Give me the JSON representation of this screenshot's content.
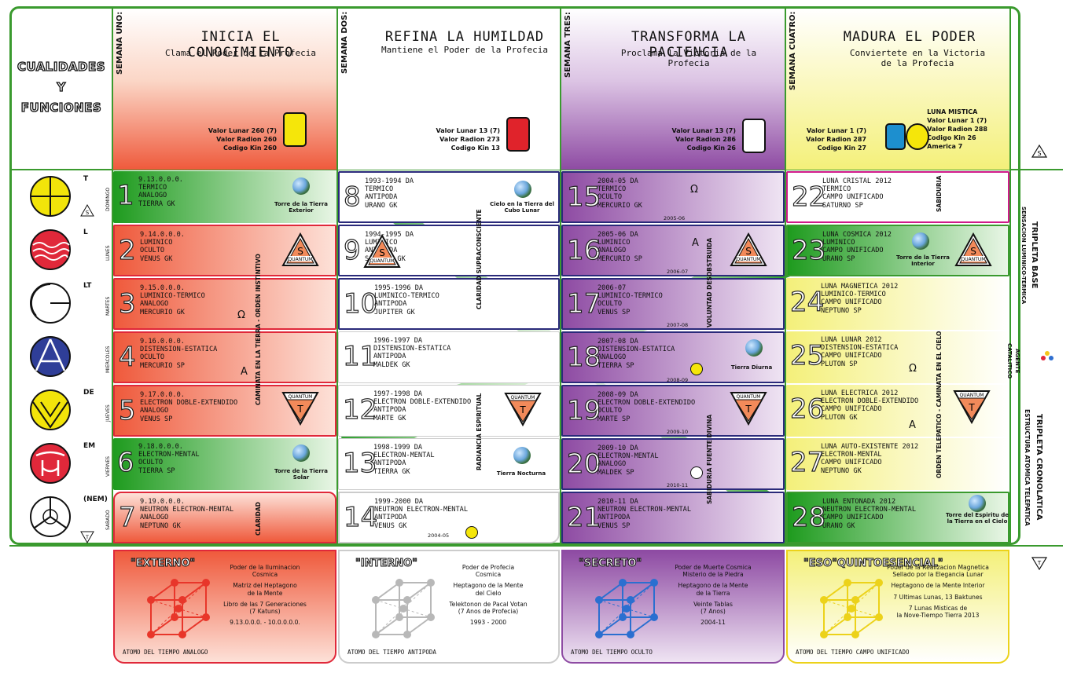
{
  "qualities_title": [
    "CUALIDADES",
    "Y",
    "FUNCIONES"
  ],
  "weeks": [
    {
      "week": "SEMANA UNO:",
      "title": "INICIA EL CONOCIMIENTO",
      "subtitle": "Clama el Poder de la Profecia",
      "values": [
        "Valor Lunar 260 (7)",
        "Valor Radion 260",
        "Codigo Kin 260"
      ],
      "color": "#ef5a3c"
    },
    {
      "week": "SEMANA DOS:",
      "title": "REFINA LA HUMILDAD",
      "subtitle": "Mantiene el Poder de la Profecia",
      "values": [
        "Valor Lunar 13 (7)",
        "Valor Radion 273",
        "Codigo Kin 13"
      ],
      "color": "#ffffff"
    },
    {
      "week": "SEMANA TRES:",
      "title": "TRANSFORMA LA PACIENCIA",
      "subtitle": "Proclama la Victoria de la Profecia",
      "values": [
        "Valor Lunar 13 (7)",
        "Valor Radion 286",
        "Codigo Kin 26"
      ],
      "color": "#8e4ba3"
    },
    {
      "week": "SEMANA CUATRO:",
      "title": "MADURA EL PODER",
      "subtitle": "Conviertete en la Victoria\nde la Profecia",
      "values": [
        "Valor Lunar 1 (7)",
        "Valor Radion 287",
        "Codigo Kin 27"
      ],
      "values_b_title": "LUNA MISTICA",
      "values_b": [
        "Valor Lunar 1 (7)",
        "Valor Radion 288",
        "Codigo Kin 26",
        "America 7"
      ],
      "color": "#f4f07a"
    }
  ],
  "rows": [
    {
      "code": "T",
      "day": "DOMINGO",
      "color": "#f2e40a"
    },
    {
      "code": "L",
      "day": "LUNES",
      "color": "#e0283a"
    },
    {
      "code": "LT",
      "day": "MARTES",
      "color": "#ffffff"
    },
    {
      "code": "",
      "day": "MIERCOLES",
      "color": "#2f3e98"
    },
    {
      "code": "DE",
      "day": "JUEVES",
      "color": "#f2e40a"
    },
    {
      "code": "EM",
      "day": "VIERNES",
      "color": "#e0283a"
    },
    {
      "code": "(NEM)",
      "day": "SABADO",
      "color": "#ffffff"
    }
  ],
  "cells": [
    {
      "n": "1",
      "lines": [
        "9.13.0.0.0.",
        "TERMICO",
        "ANALOGO",
        "TIERRA GK"
      ],
      "extra": "Torre de la Tierra Exterior"
    },
    {
      "n": "2",
      "lines": [
        "9.14.0.0.0.",
        "LUMINICO",
        "OCULTO",
        "VENUS GK"
      ],
      "extra": "QUANTUM"
    },
    {
      "n": "3",
      "lines": [
        "9.15.0.0.0.",
        "LUMINICO-TERMICO",
        "ANALOGO",
        "MERCURIO GK"
      ],
      "extra": "Ω"
    },
    {
      "n": "4",
      "lines": [
        "9.16.0.0.0.",
        "DISTENSION-ESTATICA",
        "OCULTO",
        "MERCURIO SP"
      ],
      "extra": "A"
    },
    {
      "n": "5",
      "lines": [
        "9.17.0.0.0.",
        "ELECTRON DOBLE-EXTENDIDO",
        "ANALOGO",
        "VENUS SP"
      ],
      "extra": "QUANTUM"
    },
    {
      "n": "6",
      "lines": [
        "9.18.0.0.0.",
        "ELECTRON-MENTAL",
        "OCULTO",
        "TIERRA SP"
      ],
      "extra": "Torre de la Tierra Solar"
    },
    {
      "n": "7",
      "lines": [
        "9.19.0.0.0.",
        "NEUTRON ELECTRON-MENTAL",
        "ANALOGO",
        "NEPTUNO GK"
      ],
      "extra": "CLARIDAD"
    },
    {
      "n": "8",
      "lines": [
        "1993-1994 DA",
        "TERMICO",
        "ANTIPODA",
        "URANO GK"
      ],
      "extra": "Cielo en la Tierra del Cubo Lunar"
    },
    {
      "n": "9",
      "lines": [
        "1994-1995 DA",
        "LUMINICO",
        "ANTIPODA",
        "SATURNO GK"
      ],
      "extra": "QUANTUM"
    },
    {
      "n": "10",
      "lines": [
        "1995-1996 DA",
        "LUMINICO-TERMICO",
        "ANTIPODA",
        "JUPITER GK"
      ],
      "extra": ""
    },
    {
      "n": "11",
      "lines": [
        "1996-1997 DA",
        "DISTENSION-ESTATICA",
        "ANTIPODA",
        "MALDEK GK"
      ],
      "extra": ""
    },
    {
      "n": "12",
      "lines": [
        "1997-1998 DA",
        "ELECTRON DOBLE-EXTENDIDO",
        "ANTIPODA",
        "MARTE GK"
      ],
      "extra": "QUANTUM"
    },
    {
      "n": "13",
      "lines": [
        "1998-1999 DA",
        "ELECTRON-MENTAL",
        "ANTIPODA",
        "TIERRA GK"
      ],
      "extra": "Tierra Nocturna"
    },
    {
      "n": "14",
      "lines": [
        "1999-2000 DA",
        "NEUTRON ELECTRON-MENTAL",
        "ANTIPODA",
        "VENUS GK"
      ],
      "extra": "2004-05"
    },
    {
      "n": "15",
      "lines": [
        "2004-05 DA",
        "TERMICO",
        "OCULTO",
        "MERCURIO GK"
      ],
      "extra": "2005-06"
    },
    {
      "n": "16",
      "lines": [
        "2005-06 DA",
        "LUMINICO",
        "ANALOGO",
        "MERCURIO SP"
      ],
      "extra": "2006-07"
    },
    {
      "n": "17",
      "lines": [
        "2006-07",
        "LUMINICO-TERMICO",
        "OCULTO",
        "VENUS SP"
      ],
      "extra": "2007-08"
    },
    {
      "n": "18",
      "lines": [
        "2007-08 DA",
        "DISTENSION-ESTATICA",
        "ANALOGO",
        "TIERRA SP"
      ],
      "extra": "2008-09"
    },
    {
      "n": "19",
      "lines": [
        "2008-09 DA",
        "ELECTRON DOBLE-EXTENDIDO",
        "OCULTO",
        "MARTE SP"
      ],
      "extra": "2009-10"
    },
    {
      "n": "20",
      "lines": [
        "2009-10 DA",
        "ELECTRON-MENTAL",
        "ANALOGO",
        "MALDEK SP"
      ],
      "extra": "2010-11"
    },
    {
      "n": "21",
      "lines": [
        "2010-11 DA",
        "NEUTRON ELECTRON-MENTAL",
        "ANTIPODA",
        "VENUS SP"
      ],
      "extra": ""
    },
    {
      "n": "22",
      "lines": [
        "LUNA CRISTAL 2012",
        "TERMICO",
        "CAMPO UNIFICADO",
        "SATURNO SP"
      ],
      "extra": "SABIDURIA"
    },
    {
      "n": "23",
      "lines": [
        "LUNA COSMICA 2012",
        "LUMINICO",
        "CAMPO UNIFICADO",
        "URANO SP"
      ],
      "extra": "Torre de la Tierra Interior"
    },
    {
      "n": "24",
      "lines": [
        "LUNA MAGNETICA 2012",
        "LUMINICO-TERMICO",
        "CAMPO UNIFICADO",
        "NEPTUNO SP"
      ],
      "extra": ""
    },
    {
      "n": "25",
      "lines": [
        "LUNA LUNAR 2012",
        "DISTENSION-ESTATICA",
        "CAMPO UNIFICADO",
        "PLUTON SP"
      ],
      "extra": "Ω"
    },
    {
      "n": "26",
      "lines": [
        "LUNA ELECTRICA 2012",
        "ELECTRON DOBLE-EXTENDIDO",
        "CAMPO UNIFICADO",
        "PLUTON GK"
      ],
      "extra": "A"
    },
    {
      "n": "27",
      "lines": [
        "LUNA AUTO-EXISTENTE 2012",
        "ELECTRON-MENTAL",
        "CAMPO UNIFICADO",
        "NEPTUNO GK"
      ],
      "extra": ""
    },
    {
      "n": "28",
      "lines": [
        "LUNA ENTONADA 2012",
        "NEUTRON ELECTRON-MENTAL",
        "CAMPO UNIFICADO",
        "URANO GK"
      ],
      "extra": "Torre del Espiritu de la Tierra en el Cielo"
    }
  ],
  "cell_labels": {
    "quantum": "QUANTUM",
    "s": "S",
    "t": "T",
    "torre_exterior": "Torre de la Tierra Exterior",
    "torre_solar": "Torre de la Tierra Solar",
    "cielo": "Cielo en la Tierra del Cubo Lunar",
    "nocturna": "Tierra Nocturna",
    "diurna": "Tierra Diurna",
    "torre_interior": "Torre de la Tierra Interior",
    "torre_espiritu": "Torre del Espiritu de la Tierra en el Cielo",
    "yr_2004": "2004-05",
    "yr_2005": "2005-06",
    "yr_2006": "2006-07",
    "yr_2007": "2007-08",
    "yr_2008": "2008-09",
    "yr_2009": "2009-10",
    "yr_2010": "2010-11"
  },
  "vertical_labels": {
    "col1": "CAMINATA EN LA TIERRA - ORDEN INSTINTIVO",
    "col1_claridad": "CLARIDAD",
    "col2a": "CLARIDAD SUPRACONSCIENTE",
    "col2b": "RADIANCIA ESPIRITUAL",
    "col3a": "VOLUNTAD DESOBSTRUIDA",
    "col3b": "SABIDURIA FUENTE DIVINA",
    "col4a": "SABIDURIA",
    "col4b": "ORDEN TELEPATICO - CAMINATA EN EL CIELO"
  },
  "side_labels": {
    "top": "TRIPLETA BASE",
    "top_sub": "SENSACION LUMINICO-TERMICA",
    "mid": "AGENTE",
    "mid_sub": "CATALITICO",
    "bottom": "TRIPLETA CRONOLATICA",
    "bottom_sub": "ESTRUCTURA ATOMICA TELEPATICA"
  },
  "bottom_boxes": [
    {
      "head": "\"EXTERNO\"",
      "lines": [
        "Poder de la Iluminacion",
        "Cosmica",
        "",
        "Matriz del Heptagono",
        "de la Mente",
        "",
        "Libro de las 7 Generaciones",
        "(7 Katuns)",
        "",
        "9.13.0.0.0. - 10.0.0.0.0."
      ],
      "foot": "ATOMO DEL TIEMPO ANALOGO",
      "color": "#ef5a3c",
      "cube": "#e8362a"
    },
    {
      "head": "\"INTERNO\"",
      "lines": [
        "Poder de Profecia",
        "Cosmica",
        "",
        "Heptagono de la Mente",
        "del Cielo",
        "",
        "Telektonon de Pacal Votan",
        "(7 Anos de Profecia)",
        "",
        "1993 - 2000"
      ],
      "foot": "ATOMO DEL TIEMPO ANTIPODA",
      "color": "#ffffff",
      "cube": "#b8b8b8"
    },
    {
      "head": "\"SECRETO\"",
      "lines": [
        "Poder de Muerte Cosmica",
        "Misterio de la Piedra",
        "",
        "Heptagono de la Mente",
        "de la Tierra",
        "",
        "Veinte Tablas",
        "(7 Anos)",
        "",
        "2004-11"
      ],
      "foot": "ATOMO DEL TIEMPO OCULTO",
      "color": "#8e4ba3",
      "cube": "#2b6fd0"
    },
    {
      "head": "\"ESO\"QUINTOESENCIAL\"",
      "lines": [
        "Poder de la Realizacion Magnetica",
        "Sellado por la Elegancia Lunar",
        "",
        "Heptagono de la Mente Interior",
        "",
        "7 Ultimas Lunas, 13 Baktunes",
        "",
        "7 Lunas Misticas de",
        "la Nove-Tiempo Tierra 2013"
      ],
      "foot": "ATOMO DEL TIEMPO CAMPO UNIFICADO",
      "color": "#f4f07a",
      "cube": "#ecd21a"
    }
  ]
}
